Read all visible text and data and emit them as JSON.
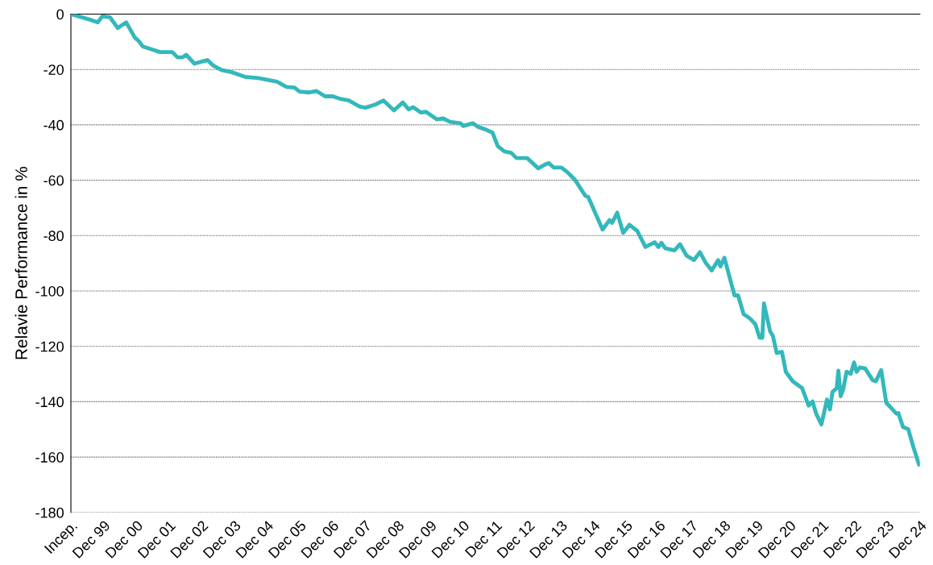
{
  "chart_data": {
    "type": "line",
    "ylabel": "Relavie Performance in %",
    "xticks": [
      {
        "value": "1998-12-31",
        "label": "Incep."
      },
      {
        "value": "1999-12-31",
        "label": "Dec 99"
      },
      {
        "value": "2000-12-31",
        "label": "Dec 00"
      },
      {
        "value": "2001-12-31",
        "label": "Dec 01"
      },
      {
        "value": "2002-12-31",
        "label": "Dec 02"
      },
      {
        "value": "2003-12-31",
        "label": "Dec 03"
      },
      {
        "value": "2004-12-31",
        "label": "Dec 04"
      },
      {
        "value": "2005-12-31",
        "label": "Dec 05"
      },
      {
        "value": "2006-12-31",
        "label": "Dec 06"
      },
      {
        "value": "2007-12-31",
        "label": "Dec 07"
      },
      {
        "value": "2008-12-31",
        "label": "Dec 08"
      },
      {
        "value": "2009-12-31",
        "label": "Dec 09"
      },
      {
        "value": "2010-12-31",
        "label": "Dec 10"
      },
      {
        "value": "2011-12-31",
        "label": "Dec 11"
      },
      {
        "value": "2012-12-31",
        "label": "Dec 12"
      },
      {
        "value": "2013-12-31",
        "label": "Dec 13"
      },
      {
        "value": "2014-12-31",
        "label": "Dec 14"
      },
      {
        "value": "2015-12-31",
        "label": "Dec 15"
      },
      {
        "value": "2016-12-31",
        "label": "Dec 16"
      },
      {
        "value": "2017-12-31",
        "label": "Dec 17"
      },
      {
        "value": "2018-12-31",
        "label": "Dec 18"
      },
      {
        "value": "2019-12-31",
        "label": "Dec 19"
      },
      {
        "value": "2020-12-31",
        "label": "Dec 20"
      },
      {
        "value": "2021-12-31",
        "label": "Dec 21"
      },
      {
        "value": "2022-12-31",
        "label": "Dec 22"
      },
      {
        "value": "2023-12-31",
        "label": "Dec 23"
      },
      {
        "value": "2024-12-31",
        "label": "Dec 24"
      }
    ],
    "xlim": [
      "1998-12-31",
      "2024-12-31"
    ],
    "ylim": [
      -180,
      0
    ],
    "yticks": [
      0,
      -20,
      -40,
      -60,
      -80,
      -100,
      -120,
      -140,
      -160,
      -180
    ],
    "grid": "y",
    "marker": "none",
    "line_style": "solid",
    "series": [
      {
        "color": "#33b8bb",
        "x": [
          "1998-12-31",
          "1999-08-01",
          "1999-10-27",
          "1999-12-17",
          "2000-03-11",
          "2000-06-07",
          "2000-09-10",
          "2000-12-14",
          "2001-01-30",
          "2001-03-15",
          "2001-09-24",
          "2002-02-07",
          "2002-04-06",
          "2002-06-03",
          "2002-07-13",
          "2002-10-13",
          "2002-12-17",
          "2003-03-08",
          "2003-05-12",
          "2003-08-12",
          "2003-12-06",
          "2004-05-05",
          "2004-09-28",
          "2005-04-24",
          "2005-08-08",
          "2005-11-04",
          "2005-12-31",
          "2006-04-17",
          "2006-07-10",
          "2006-10-13",
          "2007-01-08",
          "2007-04-10",
          "2007-07-06",
          "2007-11-04",
          "2008-01-08",
          "2008-05-01",
          "2008-07-28",
          "2008-11-22",
          "2009-02-28",
          "2009-05-05",
          "2009-06-25",
          "2009-09-17",
          "2009-11-15",
          "2010-03-15",
          "2010-05-27",
          "2010-08-08",
          "2010-12-06",
          "2011-01-05",
          "2011-04-21",
          "2011-06-18",
          "2011-08-30",
          "2011-11-29",
          "2012-01-27",
          "2012-04-10",
          "2012-06-25",
          "2012-08-23",
          "2012-12-21",
          "2013-04-24",
          "2013-07-17",
          "2013-08-19",
          "2013-10-13",
          "2014-01-08",
          "2014-03-26",
          "2014-06-07",
          "2014-10-02",
          "2014-11-04",
          "2015-04-13",
          "2015-06-29",
          "2015-07-28",
          "2015-09-24",
          "2015-11-29",
          "2016-02-07",
          "2016-05-05",
          "2016-08-04",
          "2016-11-15",
          "2016-12-28",
          "2017-01-30",
          "2017-03-15",
          "2017-06-25",
          "2017-08-26",
          "2017-11-07",
          "2018-01-30",
          "2018-04-06",
          "2018-06-11",
          "2018-08-15",
          "2018-10-27",
          "2018-11-22",
          "2019-01-05",
          "2019-04-28",
          "2019-06-07",
          "2019-08-08",
          "2019-09-21",
          "2019-10-20",
          "2019-12-17",
          "2020-02-03",
          "2020-03-04",
          "2020-03-22",
          "2020-05-31",
          "2020-06-29",
          "2020-08-12",
          "2020-10-09",
          "2020-11-22",
          "2021-02-07",
          "2021-05-23",
          "2021-08-04",
          "2021-09-17",
          "2021-10-27",
          "2021-12-25",
          "2022-02-25",
          "2022-03-30",
          "2022-04-28",
          "2022-06-14",
          "2022-07-03",
          "2022-07-28",
          "2022-08-26",
          "2022-10-02",
          "2022-11-18",
          "2022-12-25",
          "2023-01-23",
          "2023-02-28",
          "2023-04-28",
          "2023-07-21",
          "2023-08-26",
          "2023-10-24",
          "2023-12-21",
          "2024-02-17",
          "2024-04-12",
          "2024-05-04",
          "2024-06-24",
          "2024-08-22",
          "2024-10-19",
          "2024-12-20"
        ],
        "values": [
          0,
          -2,
          -3,
          -0.8,
          -1.1,
          -5,
          -3,
          -8.4,
          -9.8,
          -11.7,
          -13.7,
          -13.7,
          -15.6,
          -15.6,
          -14.7,
          -17.9,
          -17.3,
          -16.6,
          -18.6,
          -20.2,
          -21,
          -22.7,
          -23.1,
          -24.4,
          -26.3,
          -26.5,
          -28,
          -28.3,
          -27.8,
          -29.7,
          -29.7,
          -30.7,
          -31.2,
          -33.4,
          -33.8,
          -32.6,
          -31.2,
          -34.8,
          -31.9,
          -34.4,
          -33.6,
          -35.5,
          -35.3,
          -38,
          -37.7,
          -38.9,
          -39.4,
          -40.4,
          -39.4,
          -40.7,
          -41.5,
          -42.8,
          -47.7,
          -49.6,
          -50.1,
          -52,
          -52,
          -55.7,
          -54.2,
          -53.8,
          -55.4,
          -55.4,
          -57.4,
          -59.8,
          -65.6,
          -66.1,
          -77.8,
          -74.4,
          -75.4,
          -71.7,
          -79,
          -76.1,
          -78.3,
          -84.1,
          -82.4,
          -84.1,
          -82.6,
          -84.6,
          -85.3,
          -83.1,
          -87.2,
          -88.8,
          -86,
          -89.9,
          -92.6,
          -88.9,
          -91.1,
          -88,
          -101.6,
          -101.6,
          -108.4,
          -109.3,
          -110,
          -112,
          -116.9,
          -116.9,
          -104.5,
          -114.7,
          -116.1,
          -122.4,
          -122,
          -129.2,
          -132.6,
          -135.1,
          -141.4,
          -139.9,
          -144.3,
          -148.2,
          -139.2,
          -142.8,
          -136.5,
          -135.1,
          -128.8,
          -138,
          -135.5,
          -129.2,
          -129.9,
          -125.8,
          -129.2,
          -127.6,
          -128,
          -132.2,
          -132.6,
          -128.6,
          -140.4,
          -142.4,
          -144.3,
          -144.1,
          -149.1,
          -149.9,
          -156.4,
          -162.7
        ]
      }
    ]
  }
}
